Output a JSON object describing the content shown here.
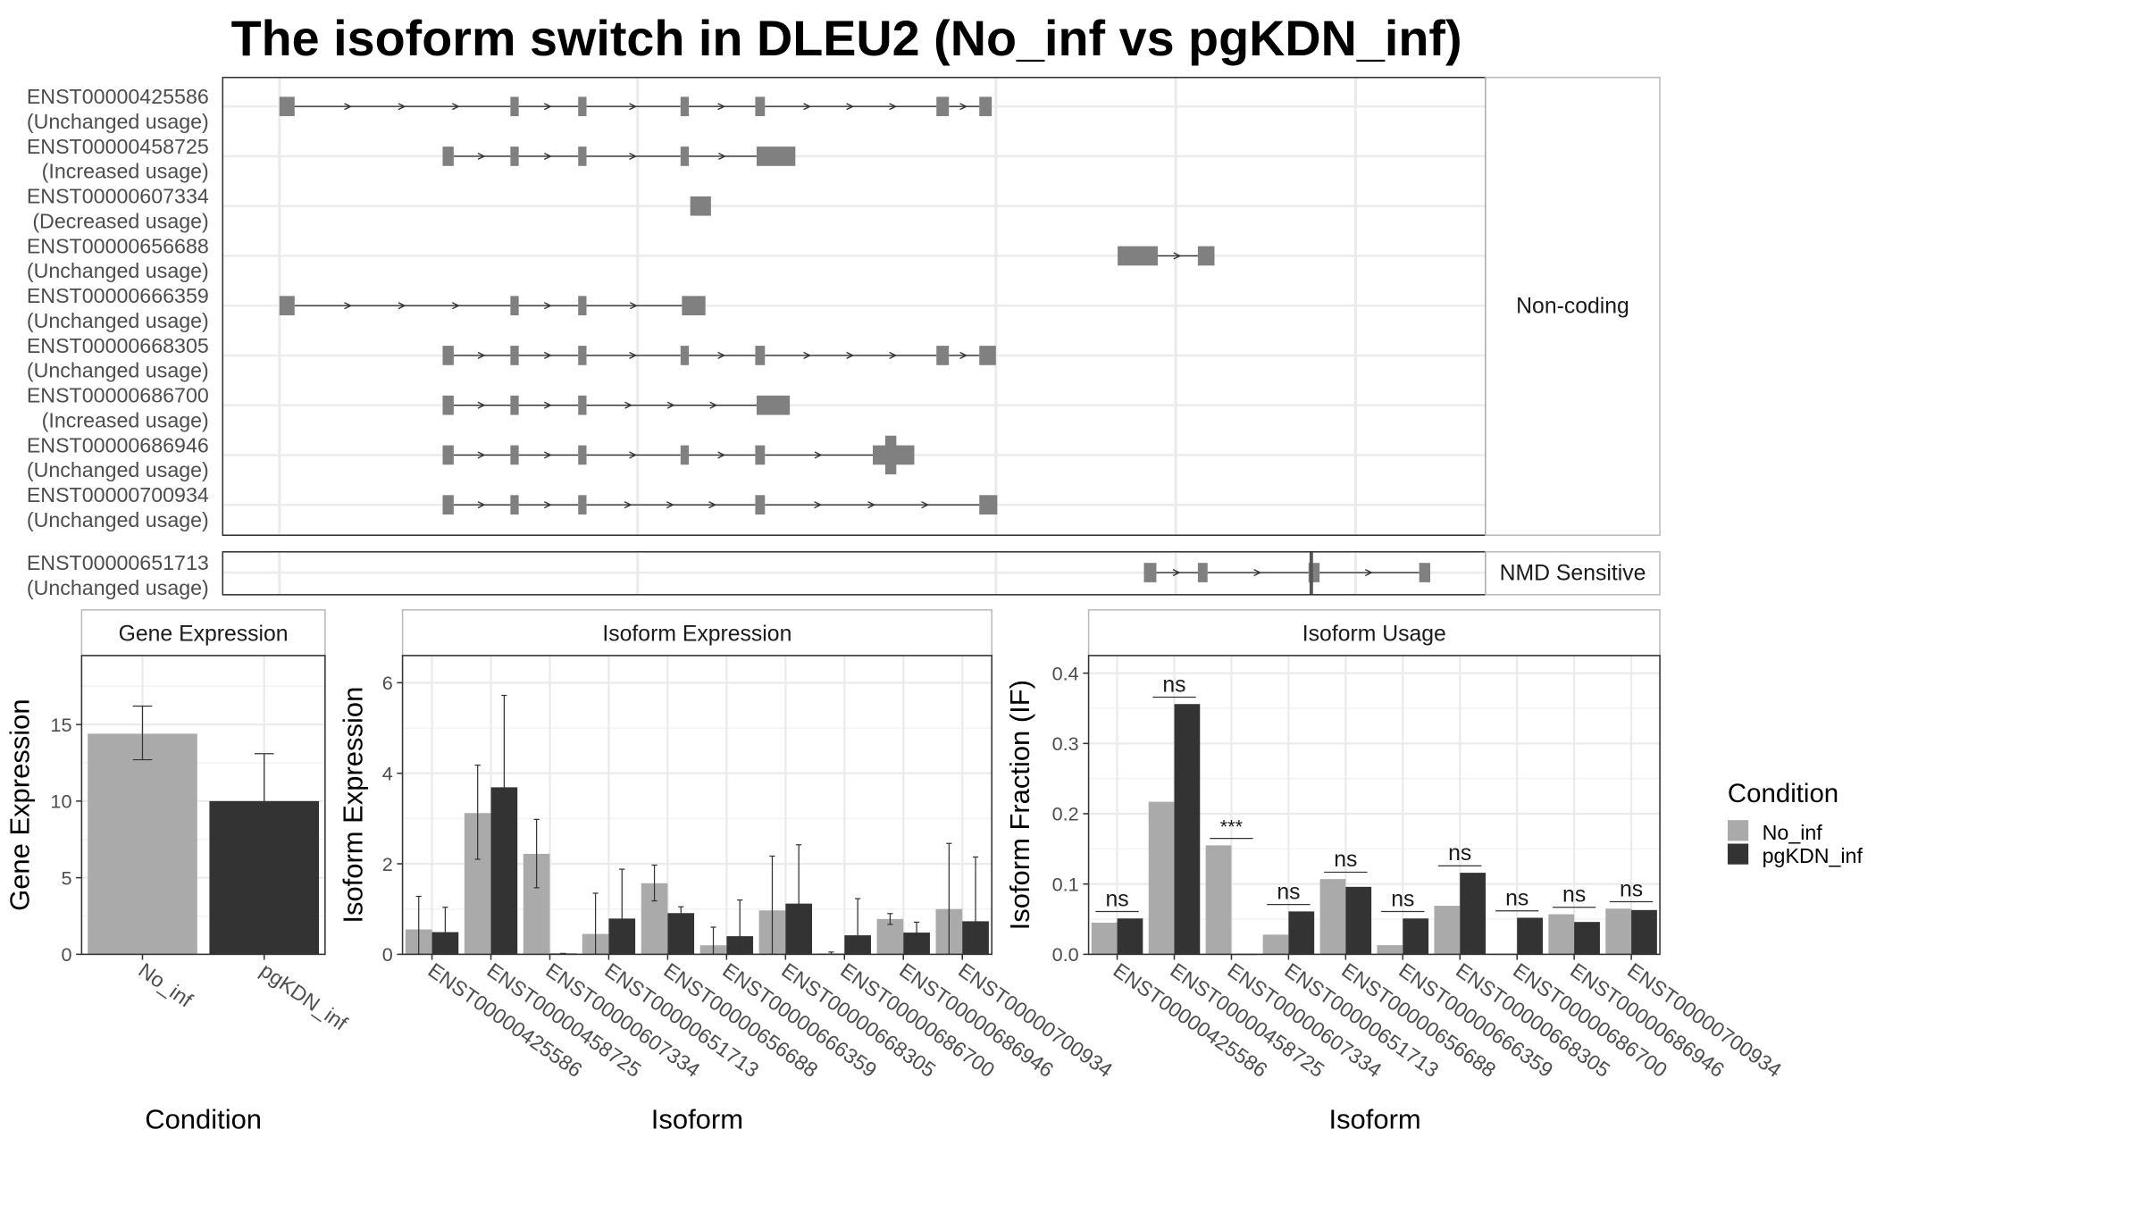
{
  "chart_data": [
    {
      "type": "isoform-structure",
      "title": "The isoform switch in DLEU2 (No_inf vs pgKDN_inf)",
      "facets": [
        "Non-coding",
        "NMD Sensitive"
      ],
      "isoforms": [
        {
          "id": "ENST00000425586",
          "usage": "(Unchanged usage)",
          "facet": "Non-coding",
          "exons": [
            [
              202,
              213
            ],
            [
              369,
              375
            ],
            [
              418,
              424
            ],
            [
              492,
              498
            ],
            [
              546,
              553
            ],
            [
              677,
              686
            ],
            [
              708,
              717
            ]
          ]
        },
        {
          "id": "ENST00000458725",
          "usage": "(Increased usage)",
          "facet": "Non-coding",
          "exons": [
            [
              320,
              328
            ],
            [
              369,
              375
            ],
            [
              418,
              424
            ],
            [
              492,
              498
            ],
            [
              547,
              575
            ]
          ]
        },
        {
          "id": "ENST00000607334",
          "usage": "(Decreased usage)",
          "facet": "Non-coding",
          "exons": [
            [
              499,
              514
            ]
          ]
        },
        {
          "id": "ENST00000656688",
          "usage": "(Unchanged usage)",
          "facet": "Non-coding",
          "exons": [
            [
              808,
              837
            ],
            [
              866,
              878
            ]
          ]
        },
        {
          "id": "ENST00000666359",
          "usage": "(Unchanged usage)",
          "facet": "Non-coding",
          "exons": [
            [
              202,
              213
            ],
            [
              369,
              375
            ],
            [
              418,
              424
            ],
            [
              493,
              510
            ]
          ]
        },
        {
          "id": "ENST00000668305",
          "usage": "(Unchanged usage)",
          "facet": "Non-coding",
          "exons": [
            [
              320,
              328
            ],
            [
              369,
              375
            ],
            [
              418,
              424
            ],
            [
              492,
              498
            ],
            [
              546,
              553
            ],
            [
              677,
              686
            ],
            [
              708,
              720
            ]
          ]
        },
        {
          "id": "ENST00000686700",
          "usage": "(Increased usage)",
          "facet": "Non-coding",
          "exons": [
            [
              320,
              328
            ],
            [
              369,
              375
            ],
            [
              418,
              424
            ],
            [
              547,
              571
            ]
          ]
        },
        {
          "id": "ENST00000686946",
          "usage": "(Unchanged usage)",
          "facet": "Non-coding",
          "exons": [
            [
              320,
              328
            ],
            [
              369,
              375
            ],
            [
              418,
              424
            ],
            [
              492,
              498
            ],
            [
              546,
              553
            ],
            [
              631,
              661
            ]
          ],
          "cds_exon": [
            640,
            648
          ]
        },
        {
          "id": "ENST00000700934",
          "usage": "(Unchanged usage)",
          "facet": "Non-coding",
          "exons": [
            [
              320,
              328
            ],
            [
              369,
              375
            ],
            [
              418,
              424
            ],
            [
              546,
              553
            ],
            [
              708,
              721
            ]
          ]
        },
        {
          "id": "ENST00000651713",
          "usage": "(Unchanged usage)",
          "facet": "NMD Sensitive",
          "exons": [
            [
              827,
              836
            ],
            [
              866,
              873
            ],
            [
              946,
              954
            ],
            [
              1026,
              1034
            ]
          ],
          "marker": 948
        }
      ]
    },
    {
      "type": "bar",
      "title": "Gene Expression",
      "xlabel": "Condition",
      "ylabel": "Gene Expression",
      "ylim": [
        0,
        19.5
      ],
      "yticks": [
        0,
        5,
        10,
        15
      ],
      "categories": [
        "No_inf",
        "pgKDN_inf"
      ],
      "values": [
        14.4,
        10.0
      ],
      "errors": [
        [
          12.7,
          16.2
        ],
        [
          7.0,
          13.1
        ]
      ]
    },
    {
      "type": "bar",
      "title": "Isoform Expression",
      "xlabel": "Isoform",
      "ylabel": "Isoform Expression",
      "ylim": [
        0,
        6.6
      ],
      "yticks": [
        0,
        2,
        4,
        6
      ],
      "categories": [
        "ENST00000425586",
        "ENST00000458725",
        "ENST00000607334",
        "ENST00000651713",
        "ENST00000656688",
        "ENST00000666359",
        "ENST00000668305",
        "ENST00000686700",
        "ENST00000686946",
        "ENST00000700934"
      ],
      "series": [
        {
          "name": "No_inf",
          "values": [
            0.55,
            3.12,
            2.22,
            0.45,
            1.57,
            0.2,
            0.97,
            0.02,
            0.78,
            1.0
          ],
          "errors": [
            [
              0.0,
              1.28
            ],
            [
              2.1,
              4.18
            ],
            [
              1.47,
              2.98
            ],
            [
              0.0,
              1.35
            ],
            [
              1.18,
              1.97
            ],
            [
              0.0,
              0.6
            ],
            [
              0.0,
              2.17
            ],
            [
              0.0,
              0.05
            ],
            [
              0.66,
              0.9
            ],
            [
              0.0,
              2.45
            ]
          ]
        },
        {
          "name": "pgKDN_inf",
          "values": [
            0.49,
            3.69,
            0.02,
            0.79,
            0.91,
            0.4,
            1.12,
            0.42,
            0.48,
            0.73
          ],
          "errors": [
            [
              0.0,
              1.04
            ],
            [
              1.7,
              5.72
            ],
            [
              0.0,
              0.02
            ],
            [
              0.0,
              1.88
            ],
            [
              0.77,
              1.05
            ],
            [
              0.0,
              1.2
            ],
            [
              0.0,
              2.42
            ],
            [
              0.0,
              1.23
            ],
            [
              0.25,
              0.71
            ],
            [
              0.0,
              2.15
            ]
          ]
        }
      ]
    },
    {
      "type": "bar",
      "title": "Isoform Usage",
      "xlabel": "Isoform",
      "ylabel": "Isoform Fraction (IF)",
      "ylim": [
        0,
        0.425
      ],
      "yticks": [
        0.0,
        0.1,
        0.2,
        0.3,
        0.4
      ],
      "ytick_labels": [
        "0.0",
        "0.1",
        "0.2",
        "0.3",
        "0.4"
      ],
      "categories": [
        "ENST00000425586",
        "ENST00000458725",
        "ENST00000607334",
        "ENST00000651713",
        "ENST00000656688",
        "ENST00000666359",
        "ENST00000668305",
        "ENST00000686700",
        "ENST00000686946",
        "ENST00000700934"
      ],
      "series": [
        {
          "name": "No_inf",
          "values": [
            0.045,
            0.217,
            0.155,
            0.028,
            0.107,
            0.013,
            0.069,
            0.0,
            0.057,
            0.065
          ]
        },
        {
          "name": "pgKDN_inf",
          "values": [
            0.051,
            0.356,
            0.0,
            0.061,
            0.096,
            0.051,
            0.116,
            0.052,
            0.046,
            0.063
          ]
        }
      ],
      "significance": [
        "ns",
        "ns",
        "***",
        "ns",
        "ns",
        "ns",
        "ns",
        "ns",
        "ns",
        "ns"
      ]
    }
  ],
  "legend": {
    "title": "Condition",
    "items": [
      {
        "label": "No_inf",
        "color": "#aaaaaa"
      },
      {
        "label": "pgKDN_inf",
        "color": "#333333"
      }
    ]
  },
  "colors": {
    "no_inf": "#aaaaaa",
    "pgkdn_inf": "#333333",
    "exon": "#808080",
    "grid": "#ebebeb",
    "strip": "#ffffff"
  }
}
